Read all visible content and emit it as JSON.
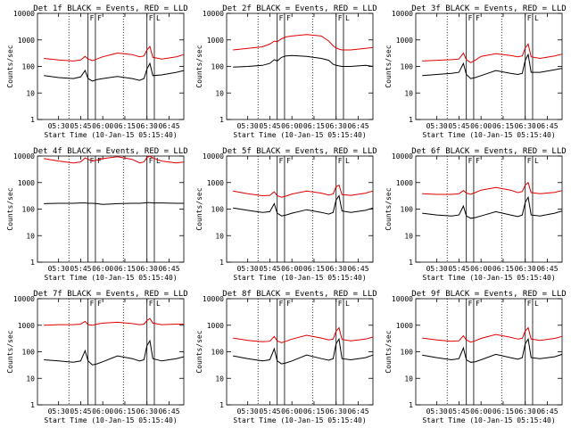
{
  "figure": {
    "xlabel": "Start Time (10-Jan-15 05:15:40)",
    "ylabel": "Counts/sec",
    "x_ticks": [
      "05:30",
      "05:45",
      "06:00",
      "06:15",
      "06:30",
      "06:45"
    ],
    "y_ticks": [
      "1",
      "10",
      "100",
      "1000",
      "10000"
    ],
    "colors": {
      "events": "#000000",
      "lld": "#e00000",
      "axes": "#000000"
    },
    "dotted_marker_times": [
      "05:37",
      "06:14"
    ],
    "interval_lines": [
      "05:50",
      "05:55",
      "06:30",
      "06:35"
    ],
    "interval_markers": [
      "F",
      "F",
      "F",
      "L"
    ]
  },
  "chart_data": [
    {
      "type": "line",
      "title": "Det 1f BLACK = Events, RED = LLD",
      "xlim": [
        "05:15:40",
        "06:55"
      ],
      "ylim": [
        1,
        10000
      ],
      "yscale": "log",
      "x": [
        "05:20",
        "05:30",
        "05:40",
        "05:45",
        "05:48",
        "05:50",
        "05:53",
        "05:56",
        "06:00",
        "06:10",
        "06:20",
        "06:25",
        "06:28",
        "06:30",
        "06:32",
        "06:34",
        "06:40",
        "06:50",
        "06:55"
      ],
      "series": [
        {
          "name": "Events",
          "color": "#000000",
          "values": [
            45,
            38,
            35,
            40,
            70,
            35,
            28,
            32,
            35,
            42,
            35,
            30,
            35,
            80,
            130,
            45,
            48,
            60,
            70
          ]
        },
        {
          "name": "LLD",
          "color": "#e00000",
          "values": [
            200,
            175,
            160,
            175,
            240,
            190,
            165,
            190,
            230,
            320,
            280,
            230,
            250,
            420,
            560,
            220,
            190,
            230,
            280
          ]
        }
      ]
    },
    {
      "type": "line",
      "title": "Det 2f BLACK = Events, RED = LLD",
      "xlim": [
        "05:15:40",
        "06:55"
      ],
      "ylim": [
        1,
        10000
      ],
      "yscale": "log",
      "x": [
        "05:20",
        "05:30",
        "05:40",
        "05:45",
        "05:48",
        "05:50",
        "05:53",
        "05:56",
        "06:00",
        "06:10",
        "06:20",
        "06:25",
        "06:28",
        "06:30",
        "06:32",
        "06:34",
        "06:40",
        "06:50",
        "06:55"
      ],
      "series": [
        {
          "name": "Events",
          "color": "#000000",
          "values": [
            95,
            100,
            110,
            130,
            180,
            160,
            220,
            250,
            260,
            240,
            200,
            170,
            120,
            110,
            105,
            100,
            100,
            110,
            100
          ]
        },
        {
          "name": "LLD",
          "color": "#e00000",
          "values": [
            420,
            480,
            550,
            700,
            900,
            850,
            1100,
            1300,
            1400,
            1600,
            1400,
            900,
            600,
            500,
            450,
            420,
            420,
            480,
            520
          ]
        }
      ]
    },
    {
      "type": "line",
      "title": "Det 3f BLACK = Events, RED = LLD",
      "xlim": [
        "05:15:40",
        "06:55"
      ],
      "ylim": [
        1,
        10000
      ],
      "yscale": "log",
      "x": [
        "05:20",
        "05:30",
        "05:40",
        "05:45",
        "05:48",
        "05:50",
        "05:53",
        "05:56",
        "06:00",
        "06:10",
        "06:20",
        "06:25",
        "06:28",
        "06:30",
        "06:32",
        "06:34",
        "06:40",
        "06:50",
        "06:55"
      ],
      "series": [
        {
          "name": "Events",
          "color": "#000000",
          "values": [
            45,
            50,
            55,
            60,
            130,
            50,
            35,
            38,
            45,
            70,
            55,
            50,
            55,
            170,
            280,
            60,
            60,
            75,
            85
          ]
        },
        {
          "name": "LLD",
          "color": "#e00000",
          "values": [
            160,
            170,
            180,
            190,
            320,
            180,
            140,
            170,
            240,
            300,
            260,
            230,
            250,
            500,
            700,
            230,
            200,
            250,
            290
          ]
        }
      ]
    },
    {
      "type": "line",
      "title": "Det 4f BLACK = Events, RED = LLD",
      "xlim": [
        "05:15:40",
        "06:55"
      ],
      "ylim": [
        1,
        10000
      ],
      "yscale": "log",
      "x": [
        "05:20",
        "05:30",
        "05:40",
        "05:45",
        "05:48",
        "05:50",
        "05:53",
        "05:56",
        "06:00",
        "06:10",
        "06:20",
        "06:25",
        "06:28",
        "06:30",
        "06:32",
        "06:34",
        "06:40",
        "06:50",
        "06:55"
      ],
      "series": [
        {
          "name": "Events",
          "color": "#000000",
          "values": [
            160,
            165,
            165,
            170,
            170,
            165,
            165,
            160,
            150,
            160,
            165,
            165,
            170,
            175,
            175,
            170,
            170,
            165,
            165
          ]
        },
        {
          "name": "LLD",
          "color": "#e00000",
          "values": [
            8000,
            6500,
            5500,
            6000,
            8500,
            7500,
            6500,
            7000,
            8000,
            9500,
            7500,
            5500,
            6000,
            9000,
            9800,
            8500,
            6500,
            5500,
            6000
          ]
        }
      ]
    },
    {
      "type": "line",
      "title": "Det 5f BLACK = Events, RED = LLD",
      "xlim": [
        "05:15:40",
        "06:55"
      ],
      "ylim": [
        1,
        10000
      ],
      "yscale": "log",
      "x": [
        "05:20",
        "05:30",
        "05:40",
        "05:45",
        "05:48",
        "05:50",
        "05:53",
        "05:56",
        "06:00",
        "06:10",
        "06:20",
        "06:25",
        "06:28",
        "06:30",
        "06:32",
        "06:34",
        "06:40",
        "06:50",
        "06:55"
      ],
      "series": [
        {
          "name": "Events",
          "color": "#000000",
          "values": [
            110,
            90,
            75,
            80,
            160,
            70,
            55,
            60,
            70,
            95,
            75,
            65,
            75,
            220,
            320,
            85,
            75,
            90,
            110
          ]
        },
        {
          "name": "LLD",
          "color": "#e00000",
          "values": [
            480,
            380,
            320,
            330,
            450,
            320,
            280,
            310,
            370,
            480,
            400,
            340,
            370,
            700,
            800,
            350,
            330,
            400,
            480
          ]
        }
      ]
    },
    {
      "type": "line",
      "title": "Det 6f BLACK = Events, RED = LLD",
      "xlim": [
        "05:15:40",
        "06:55"
      ],
      "ylim": [
        1,
        10000
      ],
      "yscale": "log",
      "x": [
        "05:20",
        "05:30",
        "05:40",
        "05:45",
        "05:48",
        "05:50",
        "05:53",
        "05:56",
        "06:00",
        "06:10",
        "06:20",
        "06:25",
        "06:28",
        "06:30",
        "06:32",
        "06:34",
        "06:40",
        "06:50",
        "06:55"
      ],
      "series": [
        {
          "name": "Events",
          "color": "#000000",
          "values": [
            70,
            60,
            55,
            60,
            130,
            55,
            45,
            48,
            55,
            80,
            60,
            52,
            60,
            180,
            280,
            60,
            55,
            70,
            85
          ]
        },
        {
          "name": "LLD",
          "color": "#e00000",
          "values": [
            380,
            360,
            360,
            380,
            500,
            400,
            360,
            420,
            520,
            650,
            520,
            420,
            460,
            800,
            1000,
            420,
            380,
            430,
            500
          ]
        }
      ]
    },
    {
      "type": "line",
      "title": "Det 7f BLACK = Events, RED = LLD",
      "xlim": [
        "05:15:40",
        "06:55"
      ],
      "ylim": [
        1,
        10000
      ],
      "yscale": "log",
      "x": [
        "05:20",
        "05:30",
        "05:40",
        "05:45",
        "05:48",
        "05:50",
        "05:53",
        "05:56",
        "06:00",
        "06:10",
        "06:20",
        "06:25",
        "06:28",
        "06:30",
        "06:32",
        "06:34",
        "06:40",
        "06:50",
        "06:55"
      ],
      "series": [
        {
          "name": "Events",
          "color": "#000000",
          "values": [
            50,
            45,
            40,
            45,
            110,
            45,
            32,
            35,
            42,
            70,
            55,
            45,
            50,
            170,
            260,
            55,
            45,
            55,
            65
          ]
        },
        {
          "name": "LLD",
          "color": "#e00000",
          "values": [
            1000,
            1050,
            1050,
            1100,
            1400,
            1050,
            1000,
            1100,
            1200,
            1300,
            1150,
            1050,
            1100,
            1500,
            1800,
            1200,
            1050,
            1100,
            1100
          ]
        }
      ]
    },
    {
      "type": "line",
      "title": "Det 8f BLACK = Events, RED = LLD",
      "xlim": [
        "05:15:40",
        "06:55"
      ],
      "ylim": [
        1,
        10000
      ],
      "yscale": "log",
      "x": [
        "05:20",
        "05:30",
        "05:40",
        "05:45",
        "05:48",
        "05:50",
        "05:53",
        "05:56",
        "06:00",
        "06:10",
        "06:20",
        "06:25",
        "06:28",
        "06:30",
        "06:32",
        "06:34",
        "06:40",
        "06:50",
        "06:55"
      ],
      "series": [
        {
          "name": "Events",
          "color": "#000000",
          "values": [
            70,
            55,
            45,
            50,
            130,
            45,
            35,
            38,
            45,
            75,
            55,
            48,
            55,
            200,
            300,
            55,
            50,
            60,
            75
          ]
        },
        {
          "name": "LLD",
          "color": "#e00000",
          "values": [
            330,
            270,
            240,
            250,
            380,
            260,
            220,
            250,
            300,
            420,
            330,
            280,
            300,
            600,
            800,
            290,
            260,
            300,
            360
          ]
        }
      ]
    },
    {
      "type": "line",
      "title": "Det 9f BLACK = Events, RED = LLD",
      "xlim": [
        "05:15:40",
        "06:55"
      ],
      "ylim": [
        1,
        10000
      ],
      "yscale": "log",
      "x": [
        "05:20",
        "05:30",
        "05:40",
        "05:45",
        "05:48",
        "05:50",
        "05:53",
        "05:56",
        "06:00",
        "06:10",
        "06:20",
        "06:25",
        "06:28",
        "06:30",
        "06:32",
        "06:34",
        "06:40",
        "06:50",
        "06:55"
      ],
      "series": [
        {
          "name": "Events",
          "color": "#000000",
          "values": [
            75,
            60,
            50,
            55,
            140,
            50,
            40,
            42,
            50,
            80,
            60,
            52,
            60,
            200,
            300,
            60,
            55,
            65,
            80
          ]
        },
        {
          "name": "LLD",
          "color": "#e00000",
          "values": [
            330,
            280,
            250,
            260,
            400,
            280,
            230,
            260,
            320,
            450,
            350,
            300,
            320,
            600,
            800,
            300,
            270,
            320,
            380
          ]
        }
      ]
    }
  ]
}
